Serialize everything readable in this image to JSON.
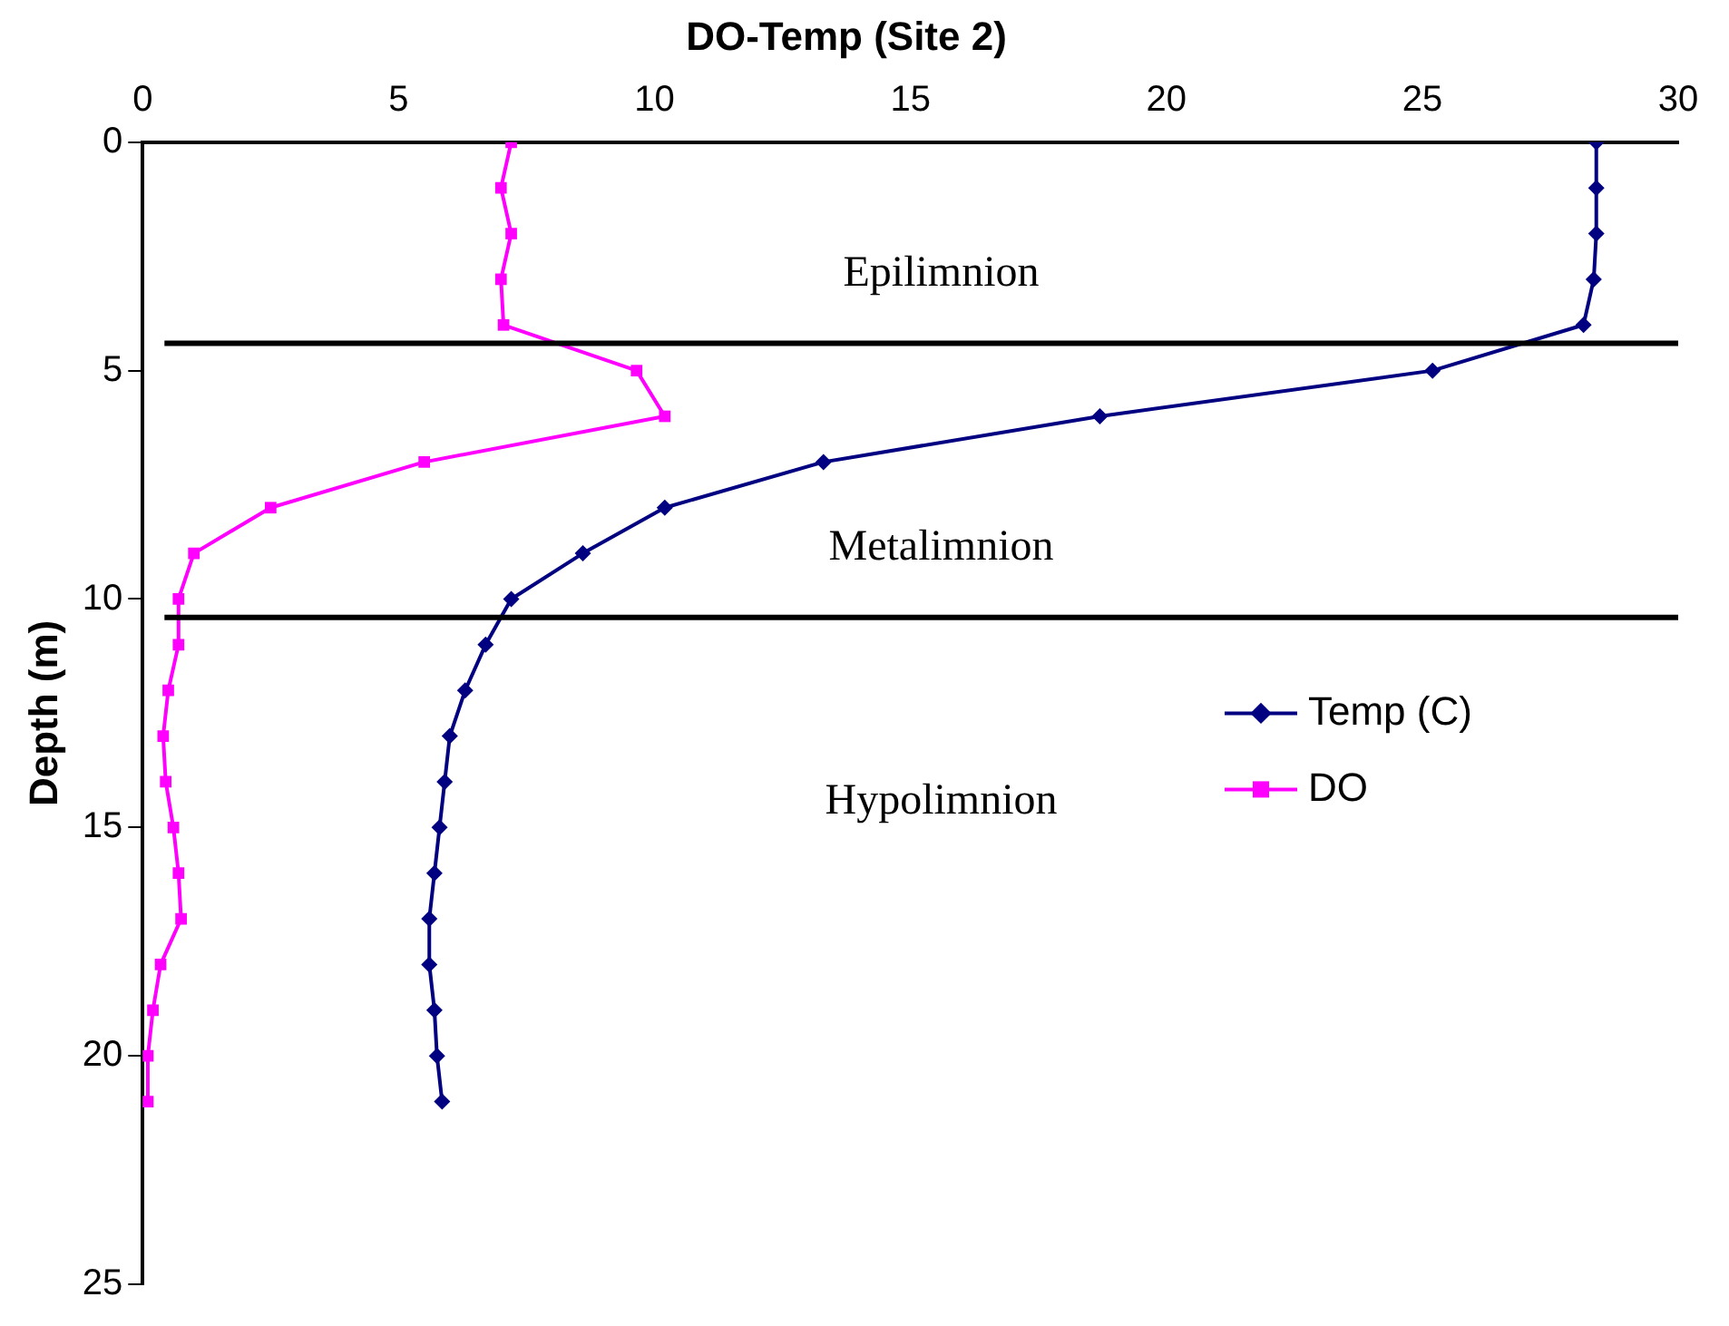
{
  "chart_data": {
    "type": "line",
    "title": "DO-Temp (Site 2)",
    "ylabel": "Depth (m)",
    "xlim": [
      0,
      30
    ],
    "xticks": [
      0,
      5,
      10,
      15,
      20,
      25,
      30
    ],
    "ylim": [
      25,
      0
    ],
    "yticks": [
      0,
      5,
      10,
      15,
      20,
      25
    ],
    "grid": false,
    "legend": "right",
    "series": [
      {
        "name": "Temp (C)",
        "color": "#000080",
        "marker": "diamond",
        "x": [
          28.4,
          28.4,
          28.4,
          28.35,
          28.15,
          25.2,
          18.7,
          13.3,
          10.2,
          8.6,
          7.2,
          6.7,
          6.3,
          6.0,
          5.9,
          5.8,
          5.7,
          5.6,
          5.6,
          5.7,
          5.75,
          5.85
        ],
        "values": [
          0,
          1,
          2,
          3,
          4,
          5,
          6,
          7,
          8,
          9,
          10,
          11,
          12,
          13,
          14,
          15,
          16,
          17,
          18,
          19,
          20,
          21
        ]
      },
      {
        "name": "DO",
        "color": "#ff00ff",
        "marker": "square",
        "x": [
          7.2,
          7.0,
          7.2,
          7.0,
          7.05,
          9.65,
          10.2,
          5.5,
          2.5,
          1.0,
          0.7,
          0.7,
          0.5,
          0.4,
          0.45,
          0.6,
          0.7,
          0.75,
          0.35,
          0.2,
          0.1,
          0.1
        ],
        "values": [
          0,
          1,
          2,
          3,
          4,
          5,
          6,
          7,
          8,
          9,
          10,
          11,
          12,
          13,
          14,
          15,
          16,
          17,
          18,
          19,
          20,
          21
        ]
      }
    ],
    "ref_lines": [
      {
        "axis": "y",
        "value": 4.4,
        "color": "#000000"
      },
      {
        "axis": "y",
        "value": 10.4,
        "color": "#000000"
      }
    ],
    "annotations": [
      "Epilimnion",
      "Metalimnion",
      "Hypolimnion"
    ]
  }
}
